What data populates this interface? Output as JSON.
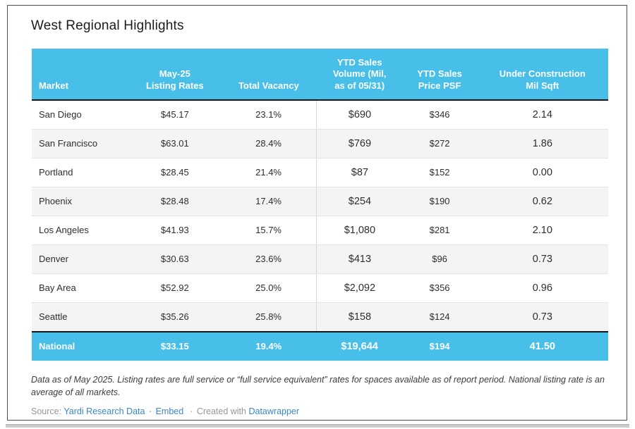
{
  "title": "West Regional Highlights",
  "colors": {
    "accent_blue": "#47bfe8",
    "link_blue": "#3b87c6",
    "header_text": "#ffffff",
    "body_text": "#2e2e2e",
    "zebra_row": "#f4f4f4",
    "rule_black": "#161616"
  },
  "chart_data": {
    "type": "table",
    "title": "West Regional Highlights",
    "columns": [
      "Market",
      "May-25\nListing Rates",
      "Total Vacancy",
      "YTD Sales\nVolume (Mil,\nas of 05/31)",
      "YTD Sales\nPrice PSF",
      "Under Construction\nMil Sqft"
    ],
    "rows": [
      [
        "San Diego",
        "$45.17",
        "23.1%",
        "$690",
        "$346",
        "2.14"
      ],
      [
        "San Francisco",
        "$63.01",
        "28.4%",
        "$769",
        "$272",
        "1.86"
      ],
      [
        "Portland",
        "$28.45",
        "21.4%",
        "$87",
        "$152",
        "0.00"
      ],
      [
        "Phoenix",
        "$28.48",
        "17.4%",
        "$254",
        "$190",
        "0.62"
      ],
      [
        "Los Angeles",
        "$41.93",
        "15.7%",
        "$1,080",
        "$281",
        "2.10"
      ],
      [
        "Denver",
        "$30.63",
        "23.6%",
        "$413",
        "$96",
        "0.73"
      ],
      [
        "Bay Area",
        "$52.92",
        "25.0%",
        "$2,092",
        "$356",
        "0.96"
      ],
      [
        "Seattle",
        "$35.26",
        "25.8%",
        "$158",
        "$124",
        "0.73"
      ]
    ],
    "summary_row": [
      "National",
      "$33.15",
      "19.4%",
      "$19,644",
      "$194",
      "41.50"
    ],
    "layout_hints": {
      "summary_row_style": "accent-blue, bold white text, black rule above",
      "header_style": "accent-blue band, bold white, bottom-aligned, black rule below",
      "zebra_striping": true
    }
  },
  "footnote": "Data as of May 2025. Listing rates are full service or “full service equivalent” rates for spaces available as of report period. National listing rate is an average of all markets.",
  "source": {
    "label": "Source:",
    "link_yardi": "Yardi Research Data",
    "separator": "·",
    "link_embed": "Embed",
    "created_with": "Created with",
    "link_datawrapper": "Datawrapper"
  }
}
